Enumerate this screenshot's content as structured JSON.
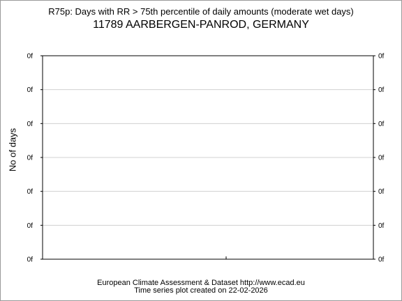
{
  "header": {
    "line1": "R75p: Days with RR > 75th percentile of daily amounts (moderate wet days)",
    "line2": "11789 AARBERGEN-PANROD, GERMANY"
  },
  "footer": {
    "line1": "European Climate Assessment & Dataset  http://www.ecad.eu",
    "line2": "Time series plot created on 22-02-2026"
  },
  "chart_data": {
    "type": "line",
    "title": "R75p: Days with RR > 75th percentile of daily amounts (moderate wet days)",
    "subtitle": "11789 AARBERGEN-PANROD, GERMANY",
    "ylabel": "No of days",
    "xlabel": "",
    "y_tick_labels": [
      "0f",
      "0f",
      "0f",
      "0f",
      "0f",
      "0f",
      "0f"
    ],
    "series": [],
    "grid": true,
    "legend": "none",
    "colors": {
      "frame": "#000000",
      "grid": "#d0d0d0",
      "border": "#9a9a9a"
    }
  }
}
